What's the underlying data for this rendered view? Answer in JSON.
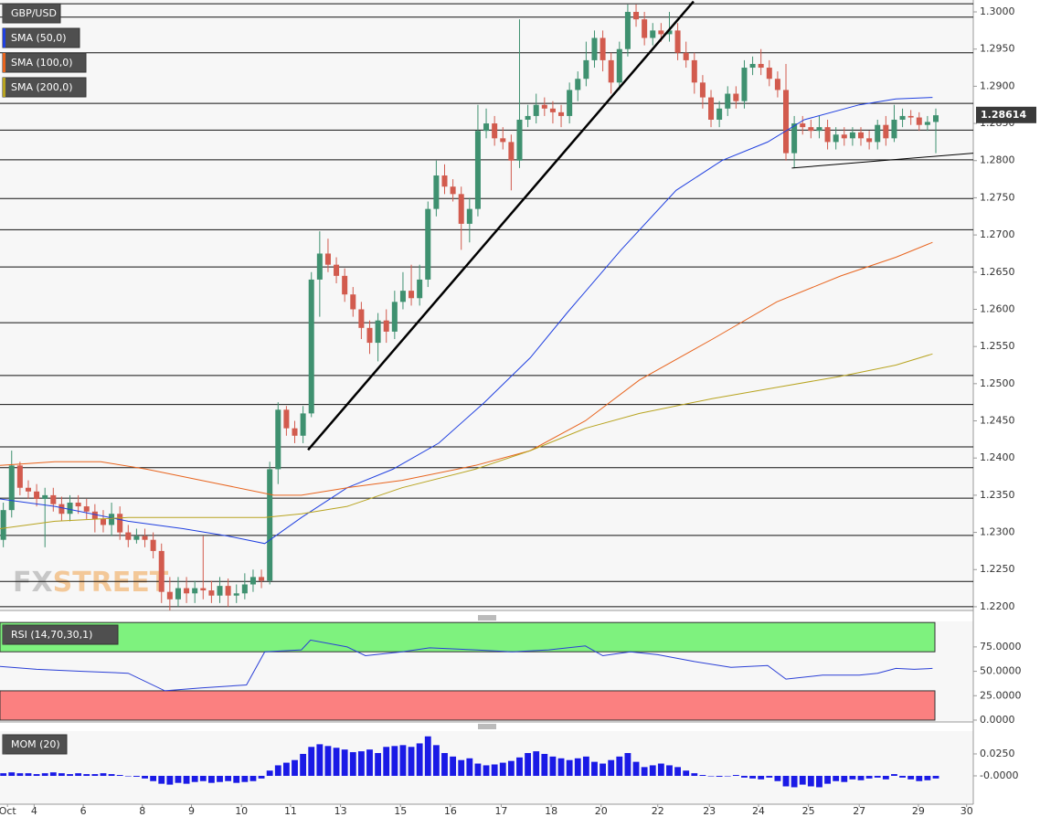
{
  "chart_data": [
    {
      "type": "candlestick",
      "title": "GBP/USD",
      "open": [
        1.229,
        1.233,
        1.239,
        1.236,
        1.2355,
        1.2345,
        1.235,
        1.2338,
        1.2325,
        1.234,
        1.2335,
        1.2328,
        1.2318,
        1.231,
        1.2325,
        1.23,
        1.229,
        1.2295,
        1.229,
        1.2275,
        1.222,
        1.221,
        1.2225,
        1.2218,
        1.2225,
        1.2222,
        1.2215,
        1.2228,
        1.2215,
        1.2218,
        1.223,
        1.224,
        1.2235,
        1.2385,
        1.2465,
        1.244,
        1.243,
        1.246,
        1.264,
        1.2675,
        1.266,
        1.2645,
        1.262,
        1.26,
        1.2575,
        1.2555,
        1.2585,
        1.257,
        1.261,
        1.2625,
        1.2615,
        1.264,
        1.2735,
        1.278,
        1.2765,
        1.2755,
        1.2715,
        1.2735,
        1.284,
        1.285,
        1.283,
        1.2825,
        1.28,
        1.2855,
        1.286,
        1.2875,
        1.287,
        1.2865,
        1.286,
        1.2895,
        1.291,
        1.2935,
        1.2965,
        1.2935,
        1.2905,
        1.295,
        1.3,
        1.299,
        1.2965,
        1.2975,
        1.297,
        1.2975,
        1.2945,
        1.2935,
        1.2905,
        1.2885,
        1.2855,
        1.287,
        1.289,
        1.288,
        1.2925,
        1.293,
        1.2925,
        1.291,
        1.2895,
        1.281,
        1.285,
        1.2845,
        1.284,
        1.2845,
        1.2825,
        1.2835,
        1.283,
        1.2838,
        1.283,
        1.2825,
        1.2848,
        1.283,
        1.2855,
        1.286,
        1.2858,
        1.2848,
        1.2852
      ],
      "high": [
        1.234,
        1.241,
        1.2395,
        1.237,
        1.2365,
        1.236,
        1.236,
        1.2348,
        1.235,
        1.235,
        1.2345,
        1.2338,
        1.233,
        1.234,
        1.2335,
        1.231,
        1.2305,
        1.2305,
        1.23,
        1.2285,
        1.224,
        1.224,
        1.224,
        1.2235,
        1.2295,
        1.2235,
        1.224,
        1.2238,
        1.223,
        1.2245,
        1.225,
        1.225,
        1.2395,
        1.2475,
        1.247,
        1.245,
        1.247,
        1.265,
        1.2705,
        1.2695,
        1.267,
        1.2655,
        1.263,
        1.261,
        1.2585,
        1.2595,
        1.26,
        1.2625,
        1.265,
        1.266,
        1.266,
        1.2745,
        1.28,
        1.2795,
        1.2775,
        1.2765,
        1.275,
        1.2875,
        1.287,
        1.286,
        1.2845,
        1.2835,
        1.299,
        1.2875,
        1.289,
        1.2885,
        1.288,
        1.2875,
        1.2905,
        1.292,
        1.296,
        1.2975,
        1.2975,
        1.2945,
        1.296,
        1.301,
        1.301,
        1.3,
        1.2985,
        1.2985,
        1.3,
        1.2985,
        1.296,
        1.2945,
        1.2915,
        1.2895,
        1.288,
        1.29,
        1.29,
        1.2935,
        1.294,
        1.295,
        1.2935,
        1.292,
        1.293,
        1.286,
        1.286,
        1.2855,
        1.286,
        1.2855,
        1.2845,
        1.2845,
        1.2845,
        1.2845,
        1.284,
        1.2855,
        1.286,
        1.2875,
        1.287,
        1.2868,
        1.2865,
        1.286,
        1.287
      ],
      "low": [
        1.228,
        1.232,
        1.235,
        1.2345,
        1.2335,
        1.228,
        1.2328,
        1.2315,
        1.2315,
        1.2325,
        1.2318,
        1.23,
        1.23,
        1.2295,
        1.229,
        1.228,
        1.2285,
        1.228,
        1.2265,
        1.2205,
        1.2195,
        1.22,
        1.2205,
        1.2205,
        1.221,
        1.2205,
        1.2205,
        1.22,
        1.2205,
        1.221,
        1.222,
        1.2225,
        1.223,
        1.2365,
        1.243,
        1.242,
        1.242,
        1.2455,
        1.259,
        1.265,
        1.2635,
        1.261,
        1.259,
        1.256,
        1.254,
        1.253,
        1.2555,
        1.256,
        1.26,
        1.2605,
        1.2605,
        1.263,
        1.2725,
        1.2755,
        1.2745,
        1.268,
        1.269,
        1.2725,
        1.283,
        1.282,
        1.2815,
        1.276,
        1.279,
        1.2845,
        1.285,
        1.286,
        1.285,
        1.2845,
        1.285,
        1.288,
        1.29,
        1.2925,
        1.292,
        1.289,
        1.2895,
        1.294,
        1.298,
        1.2955,
        1.2955,
        1.296,
        1.296,
        1.2935,
        1.2925,
        1.289,
        1.287,
        1.2845,
        1.2845,
        1.286,
        1.287,
        1.287,
        1.2915,
        1.2915,
        1.29,
        1.2885,
        1.28,
        1.279,
        1.2835,
        1.283,
        1.283,
        1.2815,
        1.2815,
        1.282,
        1.282,
        1.282,
        1.2815,
        1.2815,
        1.282,
        1.2825,
        1.2845,
        1.2848,
        1.284,
        1.284,
        1.281
      ],
      "close": [
        1.233,
        1.239,
        1.236,
        1.2355,
        1.2345,
        1.235,
        1.2338,
        1.2325,
        1.234,
        1.2335,
        1.2328,
        1.2318,
        1.231,
        1.2325,
        1.23,
        1.229,
        1.2295,
        1.229,
        1.2275,
        1.222,
        1.221,
        1.2225,
        1.2218,
        1.2225,
        1.2222,
        1.2215,
        1.2228,
        1.2215,
        1.2218,
        1.223,
        1.224,
        1.2235,
        1.2385,
        1.2465,
        1.244,
        1.243,
        1.246,
        1.264,
        1.2675,
        1.266,
        1.2645,
        1.262,
        1.26,
        1.2575,
        1.2555,
        1.2585,
        1.257,
        1.261,
        1.2625,
        1.2615,
        1.264,
        1.2735,
        1.278,
        1.2765,
        1.2755,
        1.2715,
        1.2735,
        1.284,
        1.285,
        1.283,
        1.2825,
        1.28,
        1.2855,
        1.286,
        1.2875,
        1.287,
        1.2865,
        1.286,
        1.2895,
        1.291,
        1.2935,
        1.2965,
        1.2935,
        1.2905,
        1.295,
        1.3,
        1.299,
        1.2965,
        1.2975,
        1.297,
        1.2975,
        1.2945,
        1.2935,
        1.2905,
        1.2885,
        1.2855,
        1.287,
        1.289,
        1.288,
        1.2925,
        1.293,
        1.2925,
        1.291,
        1.2895,
        1.281,
        1.285,
        1.2845,
        1.284,
        1.2845,
        1.2825,
        1.2835,
        1.283,
        1.2838,
        1.283,
        1.2825,
        1.2848,
        1.283,
        1.2855,
        1.286,
        1.2858,
        1.2848,
        1.2852,
        1.2861
      ],
      "up_color": "#3f9170",
      "down_color": "#d25b4e",
      "series": [
        {
          "name": "SMA (50,0)",
          "color": "#2040e0",
          "x": [
            -0.4,
            6.2,
            15.0,
            21.6,
            27.0,
            31.4,
            35.8,
            41.3,
            46.8,
            52.3,
            57.8,
            63.3,
            67.7,
            74.2,
            80.8,
            86.3,
            91.8,
            96.2,
            102.8,
            107.2,
            111.6
          ],
          "values": [
            1.2345,
            1.2335,
            1.2315,
            1.2305,
            1.2295,
            1.2285,
            1.232,
            1.236,
            1.2385,
            1.242,
            1.2475,
            1.2535,
            1.2595,
            1.268,
            1.276,
            1.28,
            1.2825,
            1.2855,
            1.2875,
            1.2883,
            1.2885
          ]
        },
        {
          "name": "SMA (100,0)",
          "color": "#e8641e",
          "x": [
            -0.4,
            6.2,
            11.7,
            17.2,
            26.0,
            32.5,
            35.8,
            41.3,
            47.9,
            56.7,
            63.3,
            69.9,
            76.4,
            85.2,
            92.9,
            100.6,
            107.2,
            111.6
          ],
          "values": [
            1.239,
            1.2395,
            1.2395,
            1.2385,
            1.2365,
            1.235,
            1.235,
            1.236,
            1.237,
            1.239,
            1.241,
            1.245,
            1.2505,
            1.256,
            1.261,
            1.2645,
            1.267,
            1.269
          ]
        },
        {
          "name": "SMA (200,0)",
          "color": "#b8a420",
          "x": [
            -0.4,
            6.2,
            15.0,
            21.6,
            31.4,
            35.8,
            41.3,
            47.9,
            56.7,
            63.3,
            69.9,
            76.4,
            85.2,
            92.9,
            100.6,
            107.2,
            111.6
          ],
          "values": [
            1.2305,
            1.2315,
            1.232,
            1.232,
            1.232,
            1.2325,
            1.2335,
            1.236,
            1.2385,
            1.241,
            1.244,
            1.246,
            1.248,
            1.2495,
            1.251,
            1.2525,
            1.254
          ]
        }
      ],
      "levels": [
        1.3011,
        1.2993,
        1.2945,
        1.2877,
        1.2841,
        1.2801,
        1.2749,
        1.2707,
        1.2657,
        1.2582,
        1.2511,
        1.2472,
        1.2415,
        1.2387,
        1.2346,
        1.2296,
        1.2234,
        1.22
      ],
      "trendlines": [
        {
          "x": [
            36.6,
            82.9
          ],
          "values": [
            1.2411,
            1.3014
          ]
        },
        {
          "x": [
            94.7,
            116.5
          ],
          "values": [
            1.279,
            1.281
          ]
        }
      ],
      "last_price": {
        "value": 1.28614,
        "label": "1.28614"
      },
      "watermark": [
        "FX",
        "STREET"
      ],
      "xlim": [
        -0.4,
        116.5
      ],
      "ylim": [
        1.2195,
        1.3016
      ],
      "yticks": [
        {
          "value": 1.3,
          "label": "1.3000"
        },
        {
          "value": 1.295,
          "label": "1.2950"
        },
        {
          "value": 1.29,
          "label": "1.2900"
        },
        {
          "value": 1.285,
          "label": "1.2850"
        },
        {
          "value": 1.28,
          "label": "1.2800"
        },
        {
          "value": 1.275,
          "label": "1.2750"
        },
        {
          "value": 1.27,
          "label": "1.2700"
        },
        {
          "value": 1.265,
          "label": "1.2650"
        },
        {
          "value": 1.26,
          "label": "1.2600"
        },
        {
          "value": 1.255,
          "label": "1.2550"
        },
        {
          "value": 1.25,
          "label": "1.2500"
        },
        {
          "value": 1.245,
          "label": "1.2450"
        },
        {
          "value": 1.24,
          "label": "1.2400"
        },
        {
          "value": 1.235,
          "label": "1.2350"
        },
        {
          "value": 1.23,
          "label": "1.2300"
        },
        {
          "value": 1.225,
          "label": "1.2250"
        },
        {
          "value": 1.22,
          "label": "1.2200"
        }
      ]
    },
    {
      "type": "line",
      "title": "RSI (14,70,30,1)",
      "color": "#2a3fd6",
      "x": [
        -0.4,
        4.0,
        9.5,
        15.0,
        19.4,
        23.8,
        29.2,
        31.4,
        35.8,
        36.9,
        41.3,
        43.5,
        47.9,
        51.2,
        56.7,
        61.1,
        65.5,
        69.9,
        72.0,
        75.3,
        78.6,
        83.0,
        87.4,
        91.8,
        94.0,
        98.4,
        102.8,
        105.0,
        107.2,
        109.4,
        111.6
      ],
      "values": [
        55,
        52,
        50,
        48,
        30,
        33,
        36,
        70,
        72,
        82,
        75,
        66,
        70,
        74,
        72,
        70,
        72,
        76,
        66,
        70,
        67,
        60,
        54,
        56,
        42,
        46,
        46,
        48,
        53,
        52,
        53
      ],
      "upper_band": [
        70,
        100
      ],
      "upper_color": "#7ef27e",
      "lower_band": [
        0,
        30
      ],
      "lower_color": "#fb8080",
      "xlim": [
        -0.4,
        116.5
      ],
      "ylim": [
        -1.9,
        101.1
      ],
      "yticks": [
        {
          "value": 75,
          "label": "75.0000"
        },
        {
          "value": 50,
          "label": "50.0000"
        },
        {
          "value": 25,
          "label": "25.0000"
        },
        {
          "value": 0,
          "label": "0.0000"
        }
      ]
    },
    {
      "type": "bar",
      "title": "MOM (20)",
      "color": "#1a1ae6",
      "values": [
        0.003,
        0.004,
        0.003,
        0.003,
        0.002,
        0.003,
        0.004,
        0.003,
        0.002,
        0.003,
        0.002,
        0.002,
        0.003,
        0.002,
        0.001,
        0.0,
        -0.001,
        -0.003,
        -0.006,
        -0.009,
        -0.01,
        -0.008,
        -0.009,
        -0.007,
        -0.006,
        -0.008,
        -0.007,
        -0.006,
        -0.008,
        -0.007,
        -0.006,
        -0.003,
        0.006,
        0.012,
        0.015,
        0.018,
        0.025,
        0.033,
        0.036,
        0.034,
        0.032,
        0.03,
        0.027,
        0.028,
        0.03,
        0.026,
        0.033,
        0.034,
        0.035,
        0.033,
        0.037,
        0.045,
        0.035,
        0.026,
        0.022,
        0.018,
        0.02,
        0.014,
        0.012,
        0.013,
        0.015,
        0.017,
        0.021,
        0.026,
        0.028,
        0.025,
        0.022,
        0.02,
        0.018,
        0.02,
        0.022,
        0.016,
        0.014,
        0.018,
        0.022,
        0.026,
        0.016,
        0.01,
        0.012,
        0.014,
        0.012,
        0.01,
        0.006,
        0.003,
        0.001,
        0.0,
        -0.001,
        0.0,
        0.001,
        -0.002,
        -0.003,
        -0.004,
        -0.002,
        -0.006,
        -0.012,
        -0.013,
        -0.01,
        -0.012,
        -0.013,
        -0.009,
        -0.006,
        -0.007,
        -0.004,
        -0.005,
        -0.003,
        -0.002,
        -0.004,
        0.002,
        -0.002,
        -0.004,
        -0.006,
        -0.005,
        -0.003
      ],
      "xlim": [
        -0.4,
        116.5
      ],
      "ylim": [
        -0.0323,
        0.051
      ],
      "yticks": [
        {
          "value": 0.025,
          "label": "0.0250"
        },
        {
          "value": 0,
          "label": "-0.0000"
        }
      ],
      "xticks": [
        {
          "value": 0.5,
          "label": "Oct"
        },
        {
          "value": 3.7,
          "label": "4"
        },
        {
          "value": 9.6,
          "label": "6"
        },
        {
          "value": 16.7,
          "label": "8"
        },
        {
          "value": 22.6,
          "label": "9"
        },
        {
          "value": 28.6,
          "label": "10"
        },
        {
          "value": 34.5,
          "label": "11"
        },
        {
          "value": 40.5,
          "label": "13"
        },
        {
          "value": 47.7,
          "label": "15"
        },
        {
          "value": 53.7,
          "label": "16"
        },
        {
          "value": 59.8,
          "label": "17"
        },
        {
          "value": 65.8,
          "label": "18"
        },
        {
          "value": 71.8,
          "label": "20"
        },
        {
          "value": 78.6,
          "label": "22"
        },
        {
          "value": 84.8,
          "label": "23"
        },
        {
          "value": 90.7,
          "label": "24"
        },
        {
          "value": 96.7,
          "label": "25"
        },
        {
          "value": 102.8,
          "label": "27"
        },
        {
          "value": 109.9,
          "label": "29"
        },
        {
          "value": 115.7,
          "label": "30"
        }
      ]
    }
  ]
}
